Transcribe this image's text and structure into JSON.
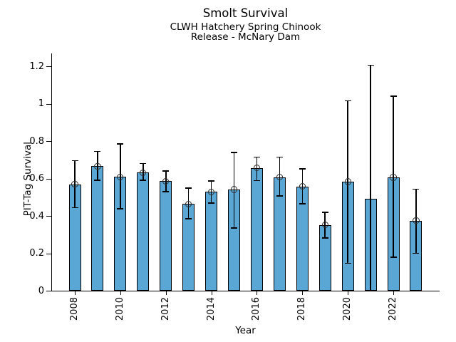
{
  "chart_data": {
    "type": "bar",
    "title": "Smolt Survival",
    "subtitle1": "CLWH Hatchery Spring Chinook",
    "subtitle2": "Release - McNary Dam",
    "xlabel": "Year",
    "ylabel": "PIT-Tag Survival",
    "grid": false,
    "legend": null,
    "ylim": [
      0,
      1.26
    ],
    "categories": [
      "2008",
      "2009",
      "2010",
      "2011",
      "2012",
      "2013",
      "2014",
      "2015",
      "2016",
      "2017",
      "2018",
      "2019",
      "2020",
      "2021",
      "2022",
      "2023"
    ],
    "x_ticks": [
      {
        "index": 0,
        "label": "2008"
      },
      {
        "index": 2,
        "label": "2010"
      },
      {
        "index": 4,
        "label": "2012"
      },
      {
        "index": 6,
        "label": "2014"
      },
      {
        "index": 8,
        "label": "2016"
      },
      {
        "index": 10,
        "label": "2018"
      },
      {
        "index": 12,
        "label": "2020"
      },
      {
        "index": 14,
        "label": "2022"
      }
    ],
    "y_ticks": [
      {
        "value": 0,
        "label": "0"
      },
      {
        "value": 0.2,
        "label": "0.2"
      },
      {
        "value": 0.4,
        "label": "0.4"
      },
      {
        "value": 0.6,
        "label": "0.6"
      },
      {
        "value": 0.8,
        "label": "0.8"
      },
      {
        "value": 1,
        "label": "1"
      },
      {
        "value": 1.2,
        "label": "1.2"
      }
    ],
    "series": [
      {
        "name": "PIT-Tag Survival estimate",
        "values": [
          0.569,
          0.665,
          0.609,
          0.632,
          0.586,
          0.464,
          0.529,
          0.541,
          0.657,
          0.607,
          0.558,
          0.351,
          0.583,
          0.492,
          0.606,
          0.375
        ],
        "ci_low": [
          0.444,
          0.59,
          0.438,
          0.59,
          0.53,
          0.385,
          0.468,
          0.335,
          0.588,
          0.506,
          0.464,
          0.282,
          0.147,
          0.003,
          0.178,
          0.2
        ],
        "ci_high": [
          0.695,
          0.745,
          0.785,
          0.68,
          0.64,
          0.548,
          0.586,
          0.74,
          0.715,
          0.714,
          0.652,
          0.418,
          1.016,
          1.206,
          1.04,
          0.543
        ],
        "marker_shown": [
          true,
          true,
          true,
          true,
          true,
          true,
          true,
          true,
          true,
          true,
          true,
          true,
          true,
          false,
          true,
          true
        ]
      }
    ],
    "colors": {
      "bar_fill": "#5aa7d5",
      "bar_edge": "#000000",
      "error_bar": "#000000",
      "marker_edge": "#2b2b2b",
      "axis": "#000000",
      "background": "#ffffff"
    },
    "marker_style": "open-circle"
  }
}
